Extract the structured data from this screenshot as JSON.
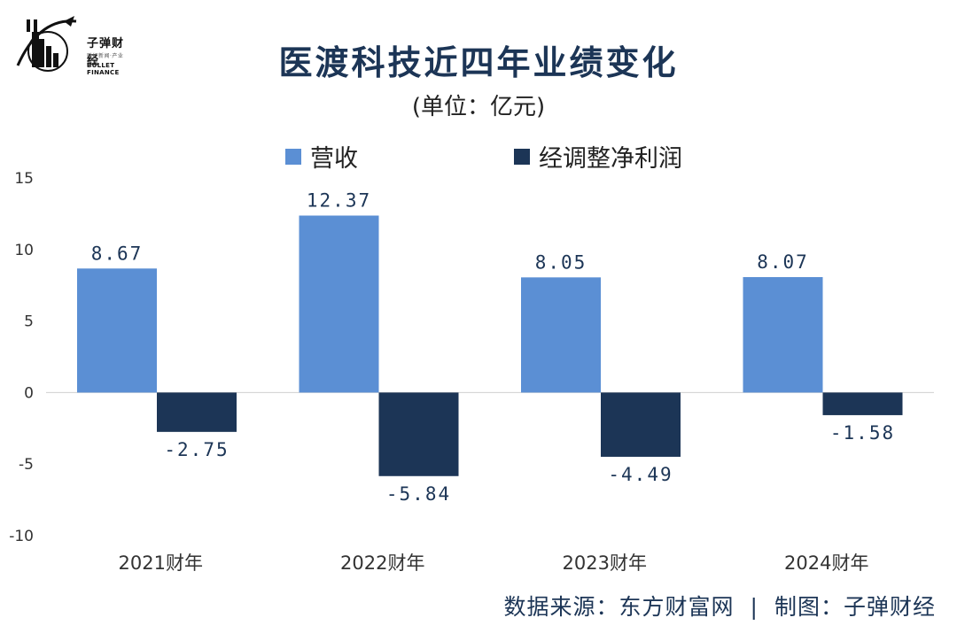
{
  "header": {
    "title": "医渡科技近四年业绩变化",
    "subtitle": "(单位：亿元)"
  },
  "logo": {
    "name_cn": "子弹财经",
    "tagline": "财经新闻·产业趋势",
    "name_en": "BULLET FINANCE"
  },
  "footer": {
    "source": "数据来源：东方财富网",
    "separator": "|",
    "credit": "制图：子弹财经"
  },
  "chart_data": {
    "type": "bar",
    "categories": [
      "2021财年",
      "2022财年",
      "2023财年",
      "2024财年"
    ],
    "series": [
      {
        "name": "营收",
        "values": [
          8.67,
          12.37,
          8.05,
          8.07
        ],
        "color": "#5b8fd4"
      },
      {
        "name": "经调整净利润",
        "values": [
          -2.75,
          -5.84,
          -4.49,
          -1.58
        ],
        "color": "#1c3556"
      }
    ],
    "data_labels": {
      "营收": [
        "8.67",
        "12.37",
        "8.05",
        "8.07"
      ],
      "经调整净利润": [
        "-2.75",
        "-5.84",
        "-4.49",
        "-1.58"
      ]
    },
    "yticks": [
      15,
      10,
      5,
      0,
      -5,
      -10
    ],
    "ylim": [
      -10,
      15
    ],
    "grid": false,
    "legend_position": "top-center",
    "xlabel": "",
    "ylabel": ""
  }
}
